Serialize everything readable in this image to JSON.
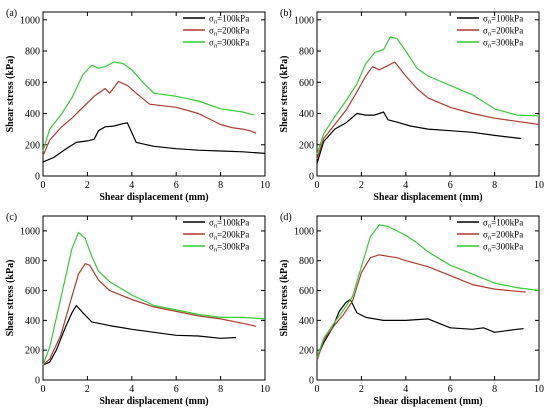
{
  "chart_data": [
    {
      "type": "line",
      "panel_label": "(a)",
      "xlabel": "Shear displacement (mm)",
      "ylabel": "Shear stress (kPa)",
      "xlim": [
        0,
        10
      ],
      "ylim": [
        0,
        1050
      ],
      "xticks": [
        0,
        2,
        4,
        6,
        8,
        10
      ],
      "yticks": [
        0,
        200,
        400,
        600,
        800,
        1000
      ],
      "legend_position": "top-right",
      "series": [
        {
          "name": "σn=100kPa",
          "symbol": "σ",
          "sub": "n",
          "rest": "=100kPa",
          "color": "#000000",
          "x": [
            0,
            0.5,
            1.0,
            1.5,
            2.0,
            2.3,
            2.5,
            2.8,
            3.2,
            3.6,
            3.8,
            4.2,
            5.0,
            6.0,
            7.0,
            8.0,
            9.0,
            10.0
          ],
          "y": [
            90,
            120,
            170,
            215,
            225,
            235,
            290,
            315,
            320,
            335,
            340,
            215,
            190,
            175,
            165,
            160,
            155,
            145
          ]
        },
        {
          "name": "σn=200kPa",
          "symbol": "σ",
          "sub": "n",
          "rest": "=200kPa",
          "color": "#b03a2e",
          "x": [
            0,
            0.3,
            0.8,
            1.3,
            1.8,
            2.3,
            2.8,
            3.0,
            3.4,
            3.8,
            4.2,
            4.8,
            6.0,
            7.0,
            8.0,
            8.5,
            9.0,
            9.3,
            9.6
          ],
          "y": [
            130,
            230,
            310,
            370,
            440,
            510,
            560,
            530,
            605,
            580,
            530,
            460,
            440,
            400,
            330,
            310,
            300,
            290,
            275
          ]
        },
        {
          "name": "σn=300kPa",
          "symbol": "σ",
          "sub": "n",
          "rest": "=300kPa",
          "color": "#33cc33",
          "x": [
            0,
            0.3,
            0.8,
            1.3,
            1.8,
            2.2,
            2.5,
            2.8,
            3.2,
            3.6,
            4.0,
            4.5,
            5.0,
            6.0,
            7.0,
            8.0,
            9.0,
            9.5
          ],
          "y": [
            160,
            300,
            390,
            500,
            650,
            710,
            690,
            700,
            730,
            720,
            680,
            600,
            530,
            510,
            480,
            430,
            410,
            390
          ]
        }
      ]
    },
    {
      "type": "line",
      "panel_label": "(b)",
      "xlabel": "Shear displacement (mm)",
      "ylabel": "Shear stress (kPa)",
      "xlim": [
        0,
        10
      ],
      "ylim": [
        0,
        1050
      ],
      "xticks": [
        0,
        2,
        4,
        6,
        8,
        10
      ],
      "yticks": [
        0,
        200,
        400,
        600,
        800,
        1000
      ],
      "legend_position": "top-right",
      "series": [
        {
          "name": "σn=100kPa",
          "symbol": "σ",
          "sub": "n",
          "rest": "=100kPa",
          "color": "#000000",
          "x": [
            0,
            0.3,
            0.8,
            1.3,
            1.8,
            2.2,
            2.6,
            3.0,
            3.2,
            3.6,
            4.2,
            5.0,
            6.0,
            7.0,
            8.0,
            8.6,
            9.2
          ],
          "y": [
            80,
            220,
            300,
            340,
            400,
            390,
            390,
            410,
            360,
            345,
            320,
            300,
            290,
            280,
            260,
            250,
            240
          ]
        },
        {
          "name": "σn=200kPa",
          "symbol": "σ",
          "sub": "n",
          "rest": "=200kPa",
          "color": "#b03a2e",
          "x": [
            0,
            0.3,
            0.8,
            1.3,
            1.8,
            2.2,
            2.5,
            2.8,
            3.1,
            3.5,
            4.0,
            4.5,
            5.0,
            6.0,
            7.0,
            8.0,
            9.0,
            10.0
          ],
          "y": [
            110,
            240,
            330,
            420,
            540,
            640,
            700,
            680,
            700,
            730,
            640,
            560,
            500,
            440,
            400,
            370,
            350,
            330
          ]
        },
        {
          "name": "σn=300kPa",
          "symbol": "σ",
          "sub": "n",
          "rest": "=300kPa",
          "color": "#33cc33",
          "x": [
            0,
            0.3,
            0.8,
            1.3,
            1.8,
            2.2,
            2.6,
            3.0,
            3.3,
            3.6,
            4.0,
            4.5,
            5.0,
            6.0,
            7.0,
            8.0,
            9.0,
            10.0
          ],
          "y": [
            140,
            270,
            380,
            480,
            590,
            720,
            790,
            810,
            890,
            880,
            800,
            690,
            640,
            580,
            520,
            430,
            390,
            385
          ]
        }
      ]
    },
    {
      "type": "line",
      "panel_label": "(c)",
      "xlabel": "Shear displacement (mm)",
      "ylabel": "Shear stress (kPa)",
      "xlim": [
        0,
        10
      ],
      "ylim": [
        0,
        1100
      ],
      "xticks": [
        0,
        2,
        4,
        6,
        8,
        10
      ],
      "yticks": [
        0,
        200,
        400,
        600,
        800,
        1000
      ],
      "legend_position": "top-right",
      "series": [
        {
          "name": "σn=100kPa",
          "symbol": "σ",
          "sub": "n",
          "rest": "=100kPa",
          "color": "#000000",
          "x": [
            0,
            0.3,
            0.6,
            1.0,
            1.3,
            1.5,
            1.8,
            2.2,
            3.0,
            4.0,
            5.0,
            6.0,
            7.0,
            8.0,
            8.7
          ],
          "y": [
            100,
            120,
            200,
            350,
            450,
            500,
            450,
            390,
            365,
            340,
            320,
            300,
            295,
            280,
            285
          ]
        },
        {
          "name": "σn=200kPa",
          "symbol": "σ",
          "sub": "n",
          "rest": "=200kPa",
          "color": "#b03a2e",
          "x": [
            0,
            0.3,
            0.8,
            1.3,
            1.6,
            1.9,
            2.1,
            2.5,
            3.0,
            4.0,
            5.0,
            6.0,
            7.0,
            8.0,
            9.0,
            9.6
          ],
          "y": [
            100,
            140,
            300,
            560,
            710,
            780,
            770,
            670,
            600,
            540,
            490,
            460,
            430,
            410,
            380,
            360
          ]
        },
        {
          "name": "σn=300kPa",
          "symbol": "σ",
          "sub": "n",
          "rest": "=300kPa",
          "color": "#33cc33",
          "x": [
            0,
            0.3,
            0.7,
            1.0,
            1.3,
            1.6,
            1.9,
            2.2,
            2.5,
            3.0,
            4.0,
            5.0,
            6.0,
            7.0,
            8.0,
            9.0,
            10.0
          ],
          "y": [
            100,
            220,
            480,
            680,
            880,
            990,
            950,
            830,
            730,
            660,
            570,
            500,
            470,
            440,
            420,
            420,
            410
          ]
        }
      ]
    },
    {
      "type": "line",
      "panel_label": "(d)",
      "xlabel": "Shear displacement (mm)",
      "ylabel": "Shear stress (kPa)",
      "xlim": [
        0,
        10
      ],
      "ylim": [
        0,
        1100
      ],
      "xticks": [
        0,
        2,
        4,
        6,
        8,
        10
      ],
      "yticks": [
        0,
        200,
        400,
        600,
        800,
        1000
      ],
      "legend_position": "top-right",
      "series": [
        {
          "name": "σn=100kPa",
          "symbol": "σ",
          "sub": "n",
          "rest": "=100kPa",
          "color": "#000000",
          "x": [
            0,
            0.3,
            0.7,
            1.0,
            1.3,
            1.5,
            1.8,
            2.2,
            3.0,
            4.0,
            5.0,
            5.5,
            6.0,
            7.0,
            7.5,
            8.0,
            8.5,
            9.0,
            9.3
          ],
          "y": [
            150,
            250,
            350,
            460,
            520,
            540,
            450,
            420,
            400,
            400,
            410,
            380,
            350,
            340,
            350,
            320,
            330,
            340,
            345
          ]
        },
        {
          "name": "σn=200kPa",
          "symbol": "σ",
          "sub": "n",
          "rest": "=200kPa",
          "color": "#b03a2e",
          "x": [
            0,
            0.3,
            0.8,
            1.2,
            1.6,
            2.0,
            2.4,
            2.8,
            3.2,
            3.6,
            4.0,
            5.0,
            6.0,
            7.0,
            8.0,
            9.0,
            9.4
          ],
          "y": [
            130,
            270,
            370,
            440,
            530,
            720,
            820,
            840,
            830,
            820,
            800,
            760,
            700,
            640,
            610,
            595,
            590
          ]
        },
        {
          "name": "σn=300kPa",
          "symbol": "σ",
          "sub": "n",
          "rest": "=300kPa",
          "color": "#33cc33",
          "x": [
            0,
            0.3,
            0.8,
            1.2,
            1.6,
            2.0,
            2.4,
            2.8,
            3.2,
            3.6,
            4.0,
            4.5,
            5.0,
            6.0,
            7.0,
            8.0,
            9.0,
            10.0
          ],
          "y": [
            150,
            280,
            390,
            470,
            560,
            760,
            960,
            1040,
            1030,
            1000,
            970,
            920,
            860,
            770,
            710,
            650,
            620,
            600
          ]
        }
      ]
    }
  ]
}
